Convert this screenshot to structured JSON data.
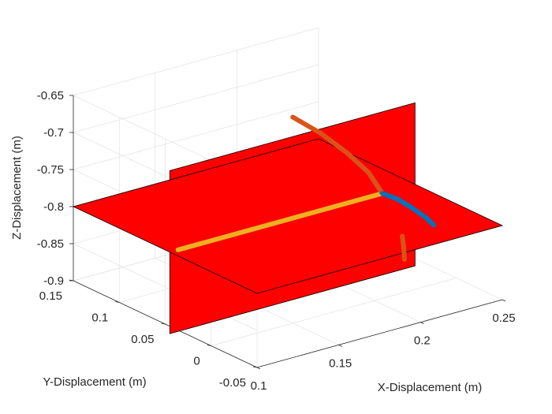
{
  "chart_data": {
    "type": "3d-surface-line",
    "title": "",
    "xlabel": "X-Displacement (m)",
    "ylabel": "Y-Displacement (m)",
    "zlabel": "Z-Displacement (m)",
    "xlim": [
      0.1,
      0.25
    ],
    "ylim": [
      -0.05,
      0.15
    ],
    "zlim": [
      -0.9,
      -0.65
    ],
    "xticks": [
      "0.1",
      "0.15",
      "0.2",
      "0.25"
    ],
    "yticks": [
      "-0.05",
      "0",
      "0.05",
      "0.1",
      "0.15"
    ],
    "zticks": [
      "-0.9",
      "-0.85",
      "-0.8",
      "-0.75",
      "-0.7",
      "-0.65"
    ],
    "grid": true,
    "planes": [
      {
        "name": "horizontal plane",
        "color": "#ff0000",
        "corners": [
          [
            0.1,
            0.15,
            -0.8
          ],
          [
            0.25,
            0.15,
            -0.8
          ],
          [
            0.25,
            -0.05,
            -0.8
          ],
          [
            0.1,
            -0.05,
            -0.8
          ]
        ]
      },
      {
        "name": "vertical plane",
        "color": "#ff0000",
        "corners": [
          [
            0.1,
            0.045,
            -0.69
          ],
          [
            0.25,
            0.045,
            -0.69
          ],
          [
            0.25,
            0.045,
            -0.91
          ],
          [
            0.1,
            0.045,
            -0.91
          ]
        ]
      }
    ],
    "series": [
      {
        "color": "#edb120",
        "x": [
          0.105,
          0.17,
          0.23
        ],
        "y": [
          0.045,
          0.045,
          0.045
        ],
        "z": [
          -0.8,
          -0.8,
          -0.8
        ]
      },
      {
        "color": "#d95319",
        "x": [
          0.23,
          0.226,
          0.218,
          0.208,
          0.196
        ],
        "y": [
          0.045,
          0.053,
          0.062,
          0.072,
          0.082
        ],
        "z": [
          -0.8,
          -0.774,
          -0.748,
          -0.722,
          -0.698
        ]
      },
      {
        "color": "#0072bd",
        "x": [
          0.23,
          0.236,
          0.24,
          0.243,
          0.244
        ],
        "y": [
          0.045,
          0.039,
          0.031,
          0.022,
          0.014
        ],
        "z": [
          -0.8,
          -0.808,
          -0.817,
          -0.826,
          -0.833
        ]
      },
      {
        "color": "#d95319",
        "x": [
          0.236,
          0.233,
          0.23
        ],
        "y": [
          0.034,
          0.027,
          0.021
        ],
        "z": [
          -0.855,
          -0.865,
          -0.875
        ]
      }
    ]
  }
}
